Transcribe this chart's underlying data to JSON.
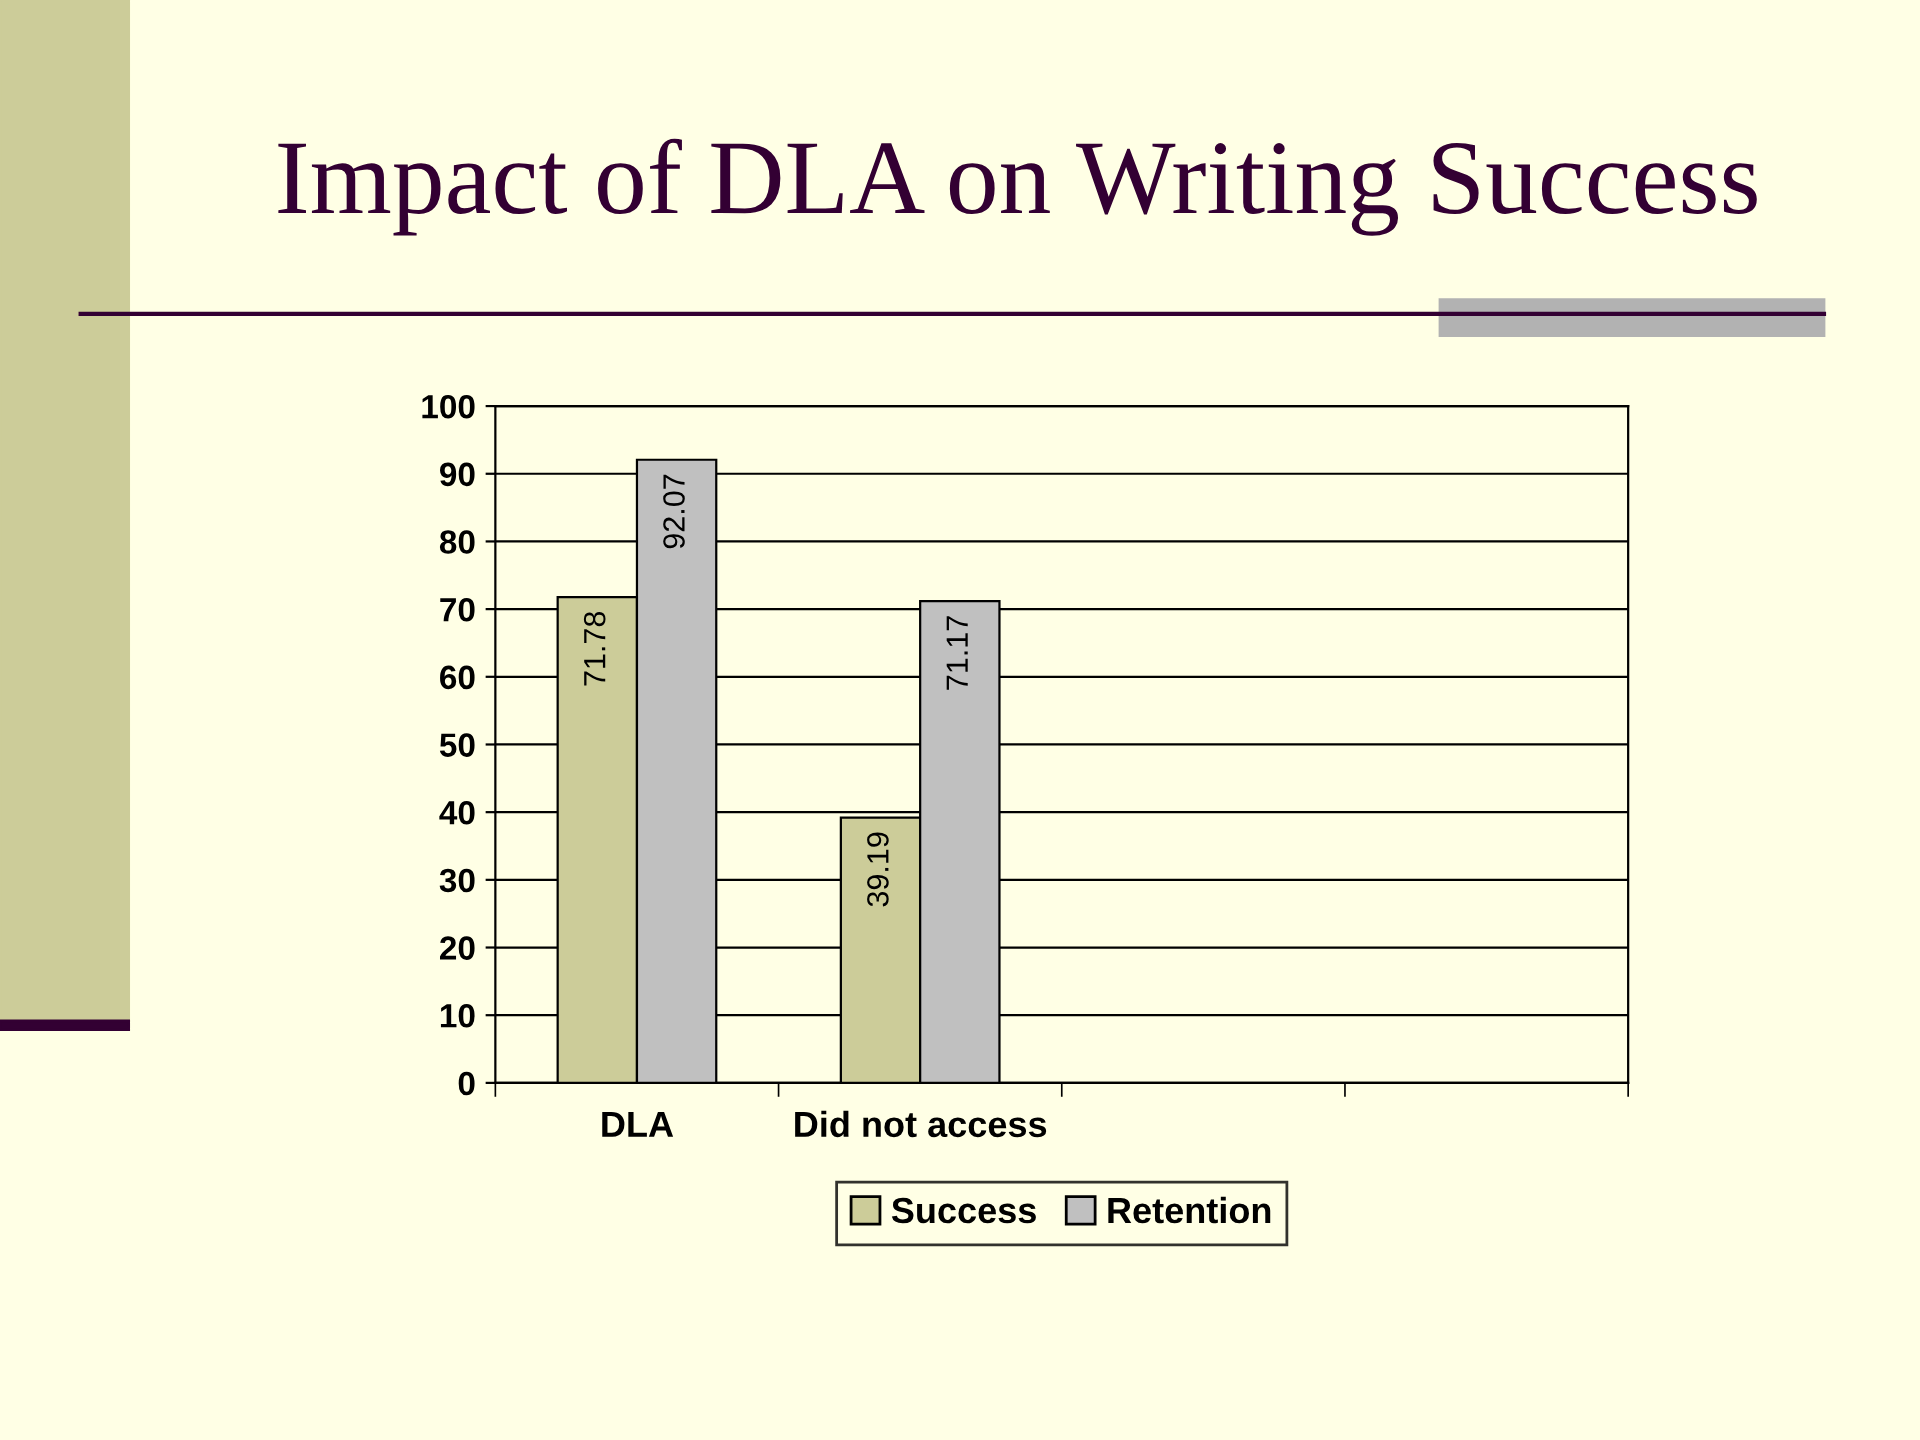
{
  "chart_data": {
    "type": "bar",
    "title": "Impact of DLA on Writing Success",
    "categories": [
      "DLA",
      "Did not access",
      null,
      null
    ],
    "series": [
      {
        "name": "Success",
        "color": "#cccc99",
        "values": [
          71.78,
          39.19,
          null,
          null
        ]
      },
      {
        "name": "Retention",
        "color": "#c0c0c0",
        "values": [
          92.07,
          71.17,
          null,
          null
        ]
      }
    ],
    "ylim": [
      0,
      100
    ],
    "yticks": [
      0,
      10,
      20,
      30,
      40,
      50,
      60,
      70,
      80,
      90,
      100
    ],
    "grid": "y",
    "legend": "bottom",
    "data_labels": true
  }
}
